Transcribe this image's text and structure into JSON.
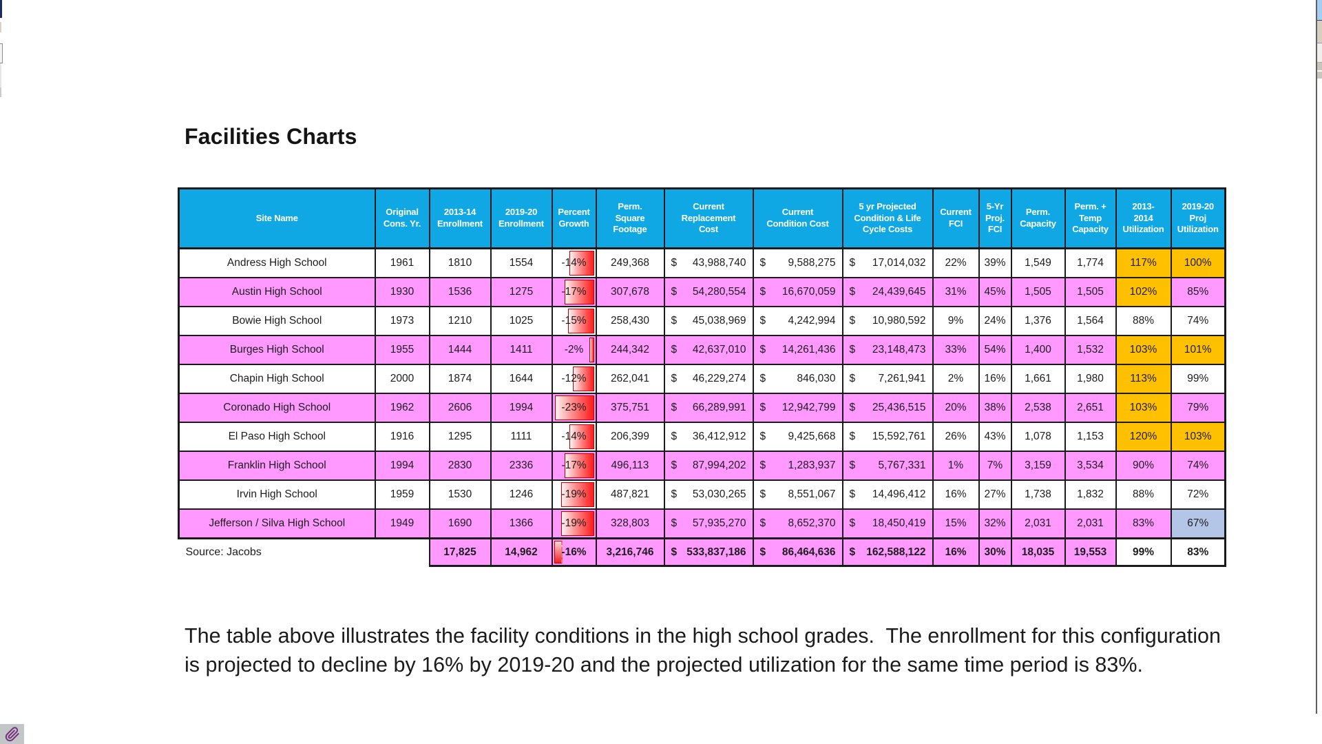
{
  "page": {
    "title": "Facilities Charts",
    "paragraph": "The table above illustrates the facility conditions in the high school grades.  The enrollment for this configuration is projected to decline by 16% by 2019-20 and the projected utilization for the same time period is 83%.",
    "source_label": "Source: Jacobs",
    "currency_symbol": "$"
  },
  "colors": {
    "header_bg": "#0FA8E4",
    "pink_row": "#FF99FF",
    "orange_highlight": "#FFC000",
    "blue_highlight": "#B4C6E7",
    "bar_red": "#FF1A1A",
    "bar_border": "#C00000",
    "paperclip": "#7B2F7F"
  },
  "table": {
    "columns": [
      {
        "label": "Site Name"
      },
      {
        "label": "Original\nCons. Yr."
      },
      {
        "label": "2013-14\nEnrollment"
      },
      {
        "label": "2019-20\nEnrollment"
      },
      {
        "label": "Percent\nGrowth"
      },
      {
        "label": "Perm.\nSquare\nFootage"
      },
      {
        "label": "Current\nReplacement\nCost"
      },
      {
        "label": "Current\nCondition Cost"
      },
      {
        "label": "5 yr Projected\nCondition & Life\nCycle Costs"
      },
      {
        "label": "Current\nFCI"
      },
      {
        "label": "5-Yr\nProj.\nFCI"
      },
      {
        "label": "Perm.\nCapacity"
      },
      {
        "label": "Perm. +\nTemp\nCapacity"
      },
      {
        "label": "2013-\n2014\nUtilization"
      },
      {
        "label": "2019-20\nProj\nUtilization"
      }
    ],
    "rows": [
      {
        "name": "Andress High School",
        "cons_yr": "1961",
        "enr_2013": "1810",
        "enr_2019": "1554",
        "growth": "-14%",
        "growth_value": -14,
        "sqft": "249,368",
        "replacement_cost": "43,988,740",
        "condition_cost": "9,588,275",
        "five_yr_cost": "17,014,032",
        "fci": "22%",
        "fci_5yr": "39%",
        "perm_capacity": "1,549",
        "perm_temp_capacity": "1,774",
        "util_2013": "117%",
        "util_2019": "100%",
        "util_2013_bg": "orange",
        "util_2019_bg": "orange"
      },
      {
        "name": "Austin High School",
        "cons_yr": "1930",
        "enr_2013": "1536",
        "enr_2019": "1275",
        "growth": "-17%",
        "growth_value": -17,
        "sqft": "307,678",
        "replacement_cost": "54,280,554",
        "condition_cost": "16,670,059",
        "five_yr_cost": "24,439,645",
        "fci": "31%",
        "fci_5yr": "45%",
        "perm_capacity": "1,505",
        "perm_temp_capacity": "1,505",
        "util_2013": "102%",
        "util_2019": "85%",
        "util_2013_bg": "orange",
        "util_2019_bg": "none"
      },
      {
        "name": "Bowie High School",
        "cons_yr": "1973",
        "enr_2013": "1210",
        "enr_2019": "1025",
        "growth": "-15%",
        "growth_value": -15,
        "sqft": "258,430",
        "replacement_cost": "45,038,969",
        "condition_cost": "4,242,994",
        "five_yr_cost": "10,980,592",
        "fci": "9%",
        "fci_5yr": "24%",
        "perm_capacity": "1,376",
        "perm_temp_capacity": "1,564",
        "util_2013": "88%",
        "util_2019": "74%",
        "util_2013_bg": "none",
        "util_2019_bg": "none"
      },
      {
        "name": "Burges High School",
        "cons_yr": "1955",
        "enr_2013": "1444",
        "enr_2019": "1411",
        "growth": "-2%",
        "growth_value": -2,
        "sqft": "244,342",
        "replacement_cost": "42,637,010",
        "condition_cost": "14,261,436",
        "five_yr_cost": "23,148,473",
        "fci": "33%",
        "fci_5yr": "54%",
        "perm_capacity": "1,400",
        "perm_temp_capacity": "1,532",
        "util_2013": "103%",
        "util_2019": "101%",
        "util_2013_bg": "orange",
        "util_2019_bg": "orange"
      },
      {
        "name": "Chapin High School",
        "cons_yr": "2000",
        "enr_2013": "1874",
        "enr_2019": "1644",
        "growth": "-12%",
        "growth_value": -12,
        "sqft": "262,041",
        "replacement_cost": "46,229,274",
        "condition_cost": "846,030",
        "five_yr_cost": "7,261,941",
        "fci": "2%",
        "fci_5yr": "16%",
        "perm_capacity": "1,661",
        "perm_temp_capacity": "1,980",
        "util_2013": "113%",
        "util_2019": "99%",
        "util_2013_bg": "orange",
        "util_2019_bg": "none"
      },
      {
        "name": "Coronado High School",
        "cons_yr": "1962",
        "enr_2013": "2606",
        "enr_2019": "1994",
        "growth": "-23%",
        "growth_value": -23,
        "sqft": "375,751",
        "replacement_cost": "66,289,991",
        "condition_cost": "12,942,799",
        "five_yr_cost": "25,436,515",
        "fci": "20%",
        "fci_5yr": "38%",
        "perm_capacity": "2,538",
        "perm_temp_capacity": "2,651",
        "util_2013": "103%",
        "util_2019": "79%",
        "util_2013_bg": "orange",
        "util_2019_bg": "none"
      },
      {
        "name": "El Paso High School",
        "cons_yr": "1916",
        "enr_2013": "1295",
        "enr_2019": "1111",
        "growth": "-14%",
        "growth_value": -14,
        "sqft": "206,399",
        "replacement_cost": "36,412,912",
        "condition_cost": "9,425,668",
        "five_yr_cost": "15,592,761",
        "fci": "26%",
        "fci_5yr": "43%",
        "perm_capacity": "1,078",
        "perm_temp_capacity": "1,153",
        "util_2013": "120%",
        "util_2019": "103%",
        "util_2013_bg": "orange",
        "util_2019_bg": "orange"
      },
      {
        "name": "Franklin High School",
        "cons_yr": "1994",
        "enr_2013": "2830",
        "enr_2019": "2336",
        "growth": "-17%",
        "growth_value": -17,
        "sqft": "496,113",
        "replacement_cost": "87,994,202",
        "condition_cost": "1,283,937",
        "five_yr_cost": "5,767,331",
        "fci": "1%",
        "fci_5yr": "7%",
        "perm_capacity": "3,159",
        "perm_temp_capacity": "3,534",
        "util_2013": "90%",
        "util_2019": "74%",
        "util_2013_bg": "none",
        "util_2019_bg": "none"
      },
      {
        "name": "Irvin High School",
        "cons_yr": "1959",
        "enr_2013": "1530",
        "enr_2019": "1246",
        "growth": "-19%",
        "growth_value": -19,
        "sqft": "487,821",
        "replacement_cost": "53,030,265",
        "condition_cost": "8,551,067",
        "five_yr_cost": "14,496,412",
        "fci": "16%",
        "fci_5yr": "27%",
        "perm_capacity": "1,738",
        "perm_temp_capacity": "1,832",
        "util_2013": "88%",
        "util_2019": "72%",
        "util_2013_bg": "none",
        "util_2019_bg": "none"
      },
      {
        "name": "Jefferson / Silva High School",
        "cons_yr": "1949",
        "enr_2013": "1690",
        "enr_2019": "1366",
        "growth": "-19%",
        "growth_value": -19,
        "sqft": "328,803",
        "replacement_cost": "57,935,270",
        "condition_cost": "8,652,370",
        "five_yr_cost": "18,450,419",
        "fci": "15%",
        "fci_5yr": "32%",
        "perm_capacity": "2,031",
        "perm_temp_capacity": "2,031",
        "util_2013": "83%",
        "util_2019": "67%",
        "util_2013_bg": "none",
        "util_2019_bg": "blue"
      }
    ],
    "totals": {
      "enr_2013": "17,825",
      "enr_2019": "14,962",
      "growth": "-16%",
      "growth_value": -16,
      "growth_bar": "left-dashed",
      "sqft": "3,216,746",
      "replacement_cost": "533,837,186",
      "condition_cost": "86,464,636",
      "five_yr_cost": "162,588,122",
      "fci": "16%",
      "fci_5yr": "30%",
      "perm_capacity": "18,035",
      "perm_temp_capacity": "19,553",
      "util_2013": "99%",
      "util_2019": "83%"
    }
  }
}
